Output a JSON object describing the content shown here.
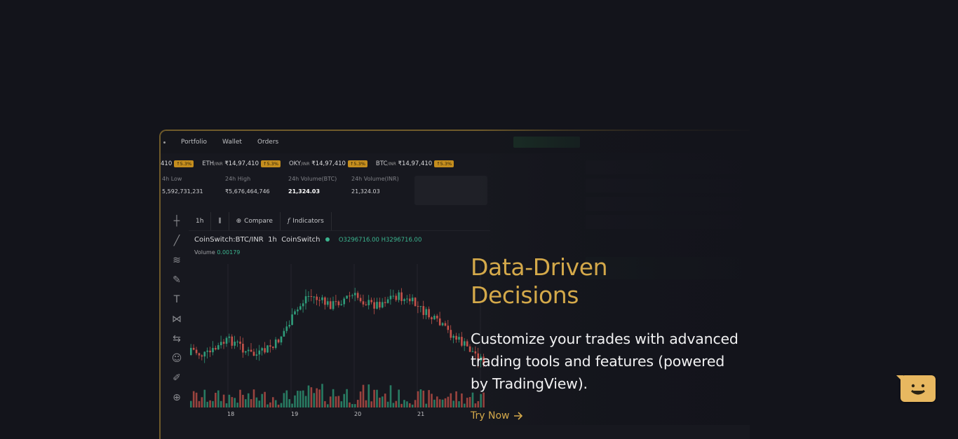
{
  "colors": {
    "background": "#13141b",
    "accent_gold": "#d4a94a",
    "candle_up": "#2f9c7a",
    "candle_down": "#c5524a"
  },
  "mockup": {
    "nav": [
      "Portfolio",
      "Wallet",
      "Orders"
    ],
    "ticker": [
      {
        "symbol": "ETH",
        "pair": "/INR",
        "price": "₹14,97,410",
        "change": "↑5.3%"
      },
      {
        "symbol": "OKY",
        "pair": "/INR",
        "price": "₹14,97,410",
        "change": "↑5.3%"
      },
      {
        "symbol": "BTC",
        "pair": "/INR",
        "price": "₹14,97,410",
        "change": "↑5.3%"
      }
    ],
    "ticker_lead": {
      "price": "410",
      "change": "↑5.3%"
    },
    "stats": [
      {
        "label": "4h Low",
        "value": "5,592,731,231"
      },
      {
        "label": "24h High",
        "value": "₹5,676,464,746"
      },
      {
        "label": "24h Volume(BTC)",
        "value": "21,324.03"
      },
      {
        "label": "24h Volume(INR)",
        "value": "21,324.03"
      }
    ],
    "toolbar": {
      "interval": "1h",
      "compare": "Compare",
      "indicators": "Indicators"
    },
    "legend": {
      "symbol": "CoinSwitch:BTC/INR",
      "interval": "1h",
      "source": "CoinSwitch",
      "ohlc": "O3296716.00 H3296716.00"
    },
    "volume": {
      "label": "Volume",
      "value": "0.00179"
    },
    "x_axis": [
      "18",
      "19",
      "20",
      "21"
    ],
    "left_tool_icons": [
      "crosshair-icon",
      "trendline-icon",
      "fib-icon",
      "brush-icon",
      "text-icon",
      "pattern-icon",
      "measure-icon",
      "emoji-icon",
      "ruler-icon",
      "zoom-icon"
    ]
  },
  "promo": {
    "title_line1": "Data-Driven",
    "title_line2": "Decisions",
    "description": "Customize your trades with advanced trading tools and features (powered by TradingView).",
    "cta": "Try Now"
  },
  "chat_widget": {
    "icon": "chat-smile-icon"
  }
}
